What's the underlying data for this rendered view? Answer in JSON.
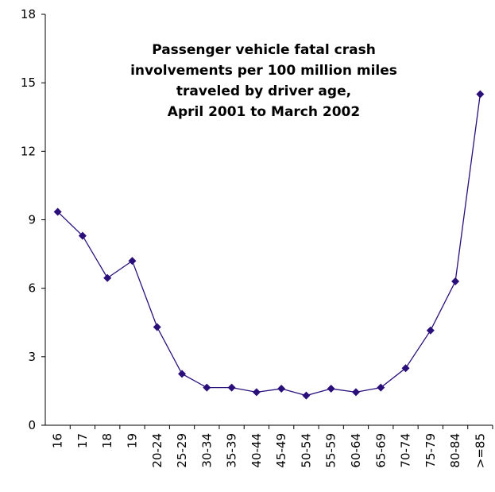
{
  "chart_data": {
    "type": "line",
    "title": [
      "Passenger vehicle fatal crash",
      "involvements per 100 million miles",
      "traveled by driver age,",
      "April 2001 to March 2002"
    ],
    "categories": [
      "16",
      "17",
      "18",
      "19",
      "20-24",
      "25-29",
      "30-34",
      "35-39",
      "40-44",
      "45-49",
      "50-54",
      "55-59",
      "60-64",
      "65-69",
      "70-74",
      "75-79",
      "80-84",
      ">=85"
    ],
    "series": [
      {
        "color": "#2a0f7a",
        "values": [
          9.35,
          8.3,
          6.45,
          7.2,
          4.3,
          2.25,
          1.65,
          1.65,
          1.45,
          1.6,
          1.3,
          1.6,
          1.45,
          1.65,
          2.5,
          4.15,
          6.3,
          14.5
        ]
      }
    ],
    "ylim": [
      0,
      18
    ],
    "yticks": [
      0,
      3,
      6,
      9,
      12,
      15,
      18
    ],
    "grid": false
  }
}
